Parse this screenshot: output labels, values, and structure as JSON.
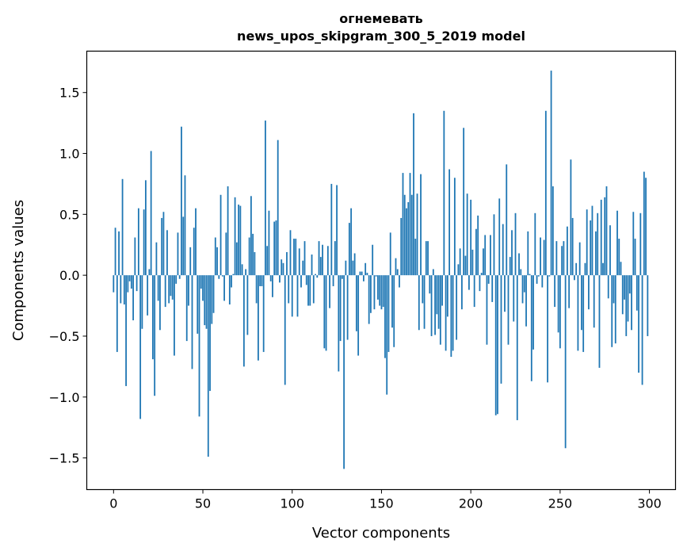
{
  "chart_data": {
    "type": "bar",
    "title_line1": "огнемевать",
    "title_line2": "news_upos_skipgram_300_5_2019 model",
    "xlabel": "Vector components",
    "ylabel": "Components values",
    "xlim": [
      -15,
      314.6
    ],
    "ylim": [
      -1.76,
      1.84
    ],
    "xticks": [
      0,
      50,
      100,
      150,
      200,
      250,
      300
    ],
    "xtick_labels": [
      "0",
      "50",
      "100",
      "150",
      "200",
      "250",
      "300"
    ],
    "yticks": [
      -1.5,
      -1.0,
      -0.5,
      0.0,
      0.5,
      1.0,
      1.5
    ],
    "ytick_labels": [
      "−1.5",
      "−1.0",
      "−0.5",
      "0.0",
      "0.5",
      "1.0",
      "1.5"
    ],
    "grid": false,
    "color": "#1f77b4",
    "values": [
      -0.14,
      0.39,
      -0.63,
      0.36,
      -0.23,
      0.79,
      -0.24,
      -0.91,
      -0.14,
      -0.05,
      -0.11,
      -0.37,
      0.31,
      -0.13,
      0.55,
      -1.18,
      -0.44,
      0.54,
      0.78,
      -0.33,
      0.05,
      1.02,
      -0.69,
      -0.99,
      0.27,
      -0.21,
      -0.45,
      0.47,
      0.52,
      -0.26,
      0.37,
      -0.23,
      -0.17,
      -0.2,
      -0.66,
      -0.07,
      0.35,
      -0.03,
      1.22,
      0.48,
      0.82,
      -0.54,
      -0.25,
      0.23,
      -0.77,
      0.39,
      0.55,
      -0.48,
      -1.16,
      -0.11,
      -0.21,
      -0.41,
      -0.44,
      -1.49,
      -0.95,
      -0.4,
      -0.31,
      0.31,
      0.23,
      -0.03,
      0.66,
      -0.01,
      -0.21,
      0.35,
      0.73,
      -0.24,
      -0.1,
      0.01,
      0.64,
      0.27,
      0.58,
      0.57,
      0.09,
      -0.75,
      0.05,
      -0.49,
      0.31,
      0.65,
      0.34,
      0.19,
      -0.23,
      -0.7,
      -0.09,
      -0.09,
      -0.63,
      1.27,
      0.24,
      0.53,
      -0.05,
      -0.18,
      0.44,
      0.45,
      1.11,
      -0.06,
      0.13,
      0.1,
      -0.9,
      0.19,
      -0.23,
      0.37,
      -0.34,
      0.3,
      0.3,
      -0.34,
      0.22,
      -0.1,
      0.12,
      0.28,
      -0.08,
      -0.25,
      -0.25,
      0.17,
      -0.23,
      0.01,
      -0.02,
      0.28,
      0.15,
      0.25,
      -0.6,
      -0.62,
      0.24,
      -0.27,
      0.75,
      -0.09,
      0.28,
      0.74,
      -0.79,
      -0.54,
      -0.03,
      -1.59,
      0.12,
      -0.53,
      0.43,
      0.55,
      0.12,
      0.18,
      -0.46,
      -0.66,
      0.03,
      0.03,
      -0.05,
      0.1,
      0.02,
      -0.4,
      -0.31,
      0.25,
      -0.28,
      -0.01,
      -0.2,
      -0.25,
      -0.28,
      -0.26,
      -0.68,
      -0.98,
      -0.63,
      0.35,
      -0.43,
      -0.59,
      0.14,
      0.05,
      -0.1,
      0.47,
      0.84,
      0.66,
      0.55,
      0.6,
      0.84,
      0.66,
      1.33,
      0.3,
      0.67,
      -0.45,
      0.83,
      -0.23,
      -0.44,
      0.28,
      0.28,
      -0.15,
      -0.5,
      0.05,
      -0.49,
      -0.32,
      -0.44,
      -0.57,
      -0.25,
      1.35,
      -0.62,
      -0.34,
      0.87,
      -0.67,
      -0.62,
      0.8,
      -0.53,
      0.09,
      0.22,
      -0.28,
      1.21,
      0.16,
      0.67,
      -0.12,
      0.62,
      0.21,
      -0.26,
      0.38,
      0.49,
      -0.13,
      0.02,
      0.22,
      0.33,
      -0.57,
      -0.07,
      0.33,
      -0.22,
      0.5,
      -1.15,
      -1.14,
      0.63,
      -0.89,
      0.42,
      -0.3,
      0.91,
      -0.57,
      0.15,
      0.37,
      -0.38,
      0.51,
      -1.19,
      0.18,
      0.05,
      -0.23,
      -0.14,
      -0.42,
      0.36,
      0.01,
      -0.87,
      -0.61,
      0.51,
      -0.07,
      -0.01,
      0.31,
      -0.1,
      0.29,
      1.35,
      -0.88,
      -0.01,
      1.68,
      0.73,
      -0.26,
      0.28,
      -0.47,
      -0.6,
      0.24,
      0.28,
      -1.42,
      0.4,
      -0.27,
      0.95,
      0.47,
      -0.04,
      0.1,
      -0.62,
      0.27,
      -0.45,
      -0.63,
      0.1,
      0.54,
      -0.28,
      0.45,
      0.57,
      -0.43,
      0.36,
      0.51,
      -0.76,
      0.62,
      0.1,
      0.64,
      0.73,
      -0.19,
      0.41,
      -0.59,
      -0.23,
      -0.56,
      0.53,
      0.3,
      0.11,
      -0.32,
      -0.2,
      -0.5,
      -0.38,
      -0.15,
      -0.45,
      0.52,
      0.3,
      -0.29,
      -0.8,
      0.51,
      -0.9,
      0.85,
      0.8,
      -0.5
    ]
  }
}
